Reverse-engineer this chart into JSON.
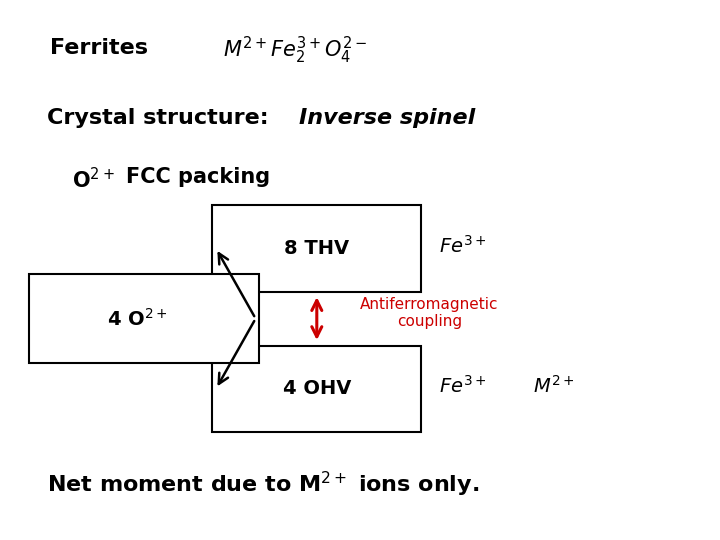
{
  "background_color": "#ffffff",
  "text_color": "#000000",
  "arrow_color": "#cc0000",
  "antiferro_color": "#cc0000",
  "box1_label": "8 THV",
  "box2_label": "4 OHV",
  "fe3plus_top": "$\\mathit{Fe}^{3+}$",
  "fe3plus_bot": "$\\mathit{Fe}^{3+}$",
  "m2plus": "$\\mathit{M}^{2+}$",
  "antiferro": "Antiferromagnetic\ncoupling"
}
